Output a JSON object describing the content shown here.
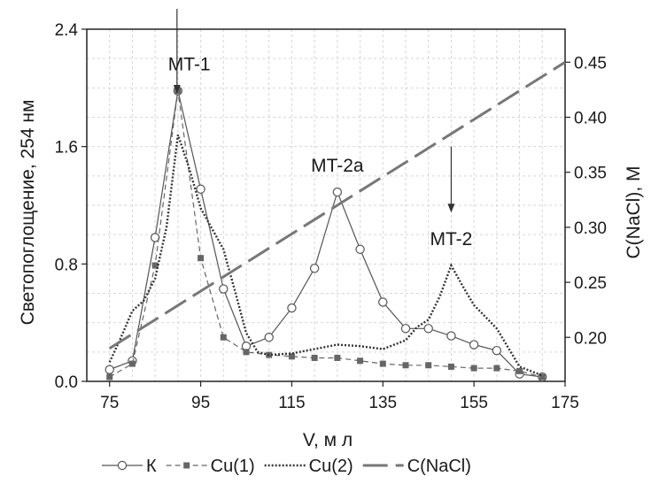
{
  "chart_data": {
    "type": "line",
    "title": "",
    "xlabel": "V, м л",
    "ylabel_left": "Светопоглощение, 254 нм",
    "ylabel_right": "C(NaCl), M",
    "xlim": [
      70,
      175
    ],
    "ylim_left": [
      0,
      2.4
    ],
    "ylim_right": [
      0.16,
      0.48
    ],
    "x_ticks": [
      "75",
      "95",
      "115",
      "135",
      "155",
      "175"
    ],
    "y_ticks_left": [
      "0.0",
      "0.8",
      "1.6",
      "2.4"
    ],
    "y_ticks_right": [
      "0.20",
      "0.25",
      "0.30",
      "0.35",
      "0.40",
      "0.45"
    ],
    "grid": true,
    "legend_position": "bottom",
    "series": [
      {
        "name": "К",
        "axis": "left",
        "color": "#555555",
        "style": "solid-open-circle",
        "x": [
          75,
          80,
          85,
          90,
          95,
          100,
          105,
          110,
          115,
          120,
          125,
          130,
          135,
          140,
          145,
          150,
          155,
          160,
          165,
          170
        ],
        "values": [
          0.08,
          0.14,
          0.98,
          1.98,
          1.31,
          0.63,
          0.24,
          0.3,
          0.5,
          0.77,
          1.29,
          0.9,
          0.54,
          0.36,
          0.36,
          0.31,
          0.25,
          0.21,
          0.05,
          0.03
        ]
      },
      {
        "name": "Cu(1)",
        "axis": "left",
        "color": "#666666",
        "style": "dashed-square",
        "x": [
          75,
          80,
          85,
          90,
          95,
          100,
          105,
          110,
          115,
          120,
          125,
          130,
          135,
          140,
          145,
          150,
          155,
          160,
          165,
          170
        ],
        "values": [
          0.03,
          0.12,
          0.79,
          1.98,
          0.84,
          0.3,
          0.2,
          0.18,
          0.17,
          0.16,
          0.16,
          0.14,
          0.12,
          0.11,
          0.11,
          0.1,
          0.09,
          0.09,
          0.07,
          0.03
        ]
      },
      {
        "name": "Cu(2)",
        "axis": "left",
        "color": "#333333",
        "style": "dotted",
        "x": [
          75,
          77.5,
          80,
          82.5,
          85,
          87.5,
          90,
          92.5,
          95,
          97.5,
          100,
          102.5,
          105,
          107.5,
          110,
          115,
          120,
          125,
          130,
          135,
          140,
          142.5,
          145,
          147.5,
          150,
          152.5,
          155,
          160,
          165,
          170
        ],
        "values": [
          0.13,
          0.3,
          0.48,
          0.55,
          0.7,
          1.05,
          1.68,
          1.45,
          1.18,
          1.04,
          0.9,
          0.62,
          0.33,
          0.2,
          0.18,
          0.19,
          0.22,
          0.25,
          0.24,
          0.22,
          0.28,
          0.37,
          0.42,
          0.58,
          0.79,
          0.65,
          0.52,
          0.36,
          0.1,
          0.04
        ]
      },
      {
        "name": "C(NaCl)",
        "axis": "right",
        "color": "#777777",
        "style": "long-dash",
        "x": [
          75,
          175
        ],
        "values": [
          0.19,
          0.45
        ]
      }
    ],
    "annotations": [
      {
        "text": "MT-1",
        "x": 92.5,
        "y": 2.12,
        "arrow": true,
        "arrow_from_y": 2.55,
        "arrow_to_y": 1.96,
        "arrow_x": 89.8
      },
      {
        "text": "MT-2a",
        "x": 125,
        "y": 1.43,
        "arrow": false
      },
      {
        "text": "MT-2",
        "x": 150,
        "y": 0.93,
        "arrow": true,
        "arrow_from_y": 1.6,
        "arrow_to_y": 1.15,
        "arrow_x": 150
      }
    ]
  }
}
